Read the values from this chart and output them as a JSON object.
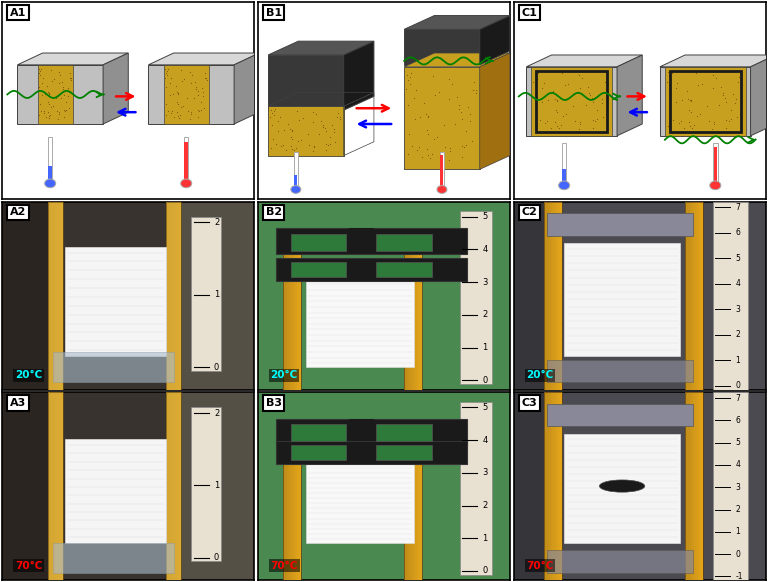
{
  "panel_labels": [
    [
      "A1",
      "B1",
      "C1"
    ],
    [
      "A2",
      "B2",
      "C2"
    ],
    [
      "A3",
      "B3",
      "C3"
    ]
  ],
  "temp_labels": [
    [
      "",
      "",
      ""
    ],
    [
      "20°C",
      "20°C",
      "20°C"
    ],
    [
      "70°C",
      "70°C",
      "70°C"
    ]
  ],
  "temp_colors": [
    [
      "cyan",
      "cyan",
      "cyan"
    ],
    [
      "cyan",
      "cyan",
      "cyan"
    ],
    [
      "red",
      "red",
      "red"
    ]
  ],
  "panel_bg": [
    [
      "white",
      "white",
      "white"
    ],
    [
      "#3a3530",
      "#3a5a3a",
      "#4a4a4a"
    ],
    [
      "#3a3530",
      "#3a5a3a",
      "#4a4a4a"
    ]
  ],
  "figsize": [
    7.68,
    5.82
  ],
  "dpi": 100,
  "gray_box": "#b8b8b8",
  "gray_dark": "#888888",
  "foam_color": "#c8a020",
  "foam_dark": "#a07010",
  "black_box": "#2a2a2a",
  "black_dark": "#1a1a1a",
  "rod_color": "#c8a040",
  "rod_edge": "#906020"
}
